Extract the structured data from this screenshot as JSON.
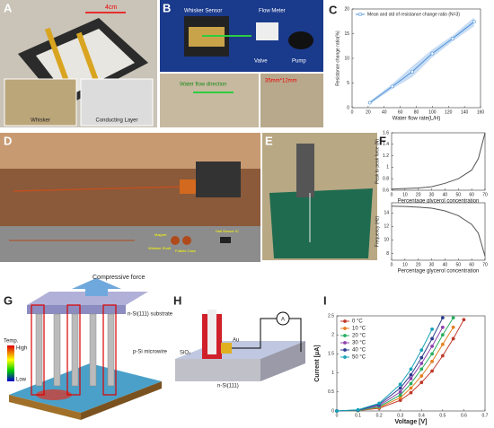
{
  "panels": [
    "A",
    "B",
    "C",
    "D",
    "E",
    "F",
    "G",
    "H",
    "I"
  ],
  "photo_labels": {
    "scale": "4cm",
    "whisker": "Whisker",
    "conducting_layer": "Conducting Layer",
    "whisker_sensor": "Whisker Sensor",
    "flow_meter": "Flow Meter",
    "valve": "Valve",
    "pump": "Pump",
    "flow_direction": "Water flow direction",
    "size": "35mm*12mm",
    "magnet": "Magnet",
    "whisker_shaft": "Whisker Shaft",
    "follicle_case": "Follicle Case",
    "hall_sensor": "Hall Sensor IC"
  },
  "diagram_labels": {
    "force": "Compressive force",
    "substrate": "n-Si(111) substrate",
    "microwire": "p-Si microwire",
    "temp": "Temp.",
    "high": "High",
    "low": "Low",
    "sio2": "SiO₂",
    "au": "Au",
    "nsi": "n-Si(111)",
    "ammeter": "A"
  },
  "chart_data": [
    {
      "type": "line",
      "x_label": "Water flow rate(L/H)",
      "y_label": "Resistance change ratio(%)",
      "x": [
        22,
        50,
        75,
        100,
        125,
        152
      ],
      "series": [
        {
          "name": "Mean and std of resistance change ratio (N=3)",
          "color": "#4a90d9",
          "values": [
            1,
            4.3,
            7.3,
            11,
            14,
            17.4
          ],
          "errors": [
            0.3,
            0.5,
            1.1,
            0.8,
            0.6,
            0.9
          ]
        }
      ],
      "xlim": [
        0,
        160
      ],
      "xticks": [
        0,
        20,
        40,
        60,
        80,
        100,
        120,
        140,
        160
      ],
      "ylim": [
        0,
        20
      ],
      "yticks": [
        0,
        5,
        10,
        15,
        20
      ],
      "markers": true,
      "legend": "upper left"
    },
    {
      "type": "line",
      "x_label": "Percentage glycerol concentration",
      "y_label": "Peak to peak force (N)",
      "x": [
        0,
        10,
        20,
        30,
        40,
        50,
        60,
        65,
        70
      ],
      "values": [
        0.62,
        0.63,
        0.64,
        0.66,
        0.72,
        0.8,
        0.95,
        1.15,
        1.6
      ],
      "color": "#555555",
      "xlim": [
        0,
        70
      ],
      "xticks": [
        0,
        10,
        20,
        30,
        40,
        50,
        60,
        70
      ],
      "ylim": [
        0.6,
        1.6
      ],
      "yticks": [
        0.6,
        0.8,
        1,
        1.2,
        1.4,
        1.6
      ]
    },
    {
      "type": "line",
      "x_label": "Percentage glycerol concentration",
      "y_label": "Frequency (Hz)",
      "x": [
        0,
        10,
        20,
        30,
        40,
        50,
        60,
        65,
        70
      ],
      "values": [
        15,
        14.95,
        14.85,
        14.7,
        14.3,
        13.6,
        12.3,
        11,
        7.6
      ],
      "color": "#555555",
      "xlim": [
        0,
        70
      ],
      "xticks": [
        0,
        10,
        20,
        30,
        40,
        50,
        60,
        70
      ],
      "ylim": [
        7,
        15.5
      ],
      "yticks": [
        8,
        10,
        12,
        14
      ]
    },
    {
      "type": "line",
      "x_label": "Voltage [V]",
      "y_label": "Current [μA]",
      "x": [
        0,
        0.1,
        0.2,
        0.3,
        0.35,
        0.4,
        0.45,
        0.5,
        0.55,
        0.6
      ],
      "series": [
        {
          "name": "0 °C",
          "color": "#c0392b",
          "values": [
            0,
            0.01,
            0.07,
            0.28,
            0.48,
            0.75,
            1.05,
            1.45,
            1.9,
            2.4
          ]
        },
        {
          "name": "10 °C",
          "color": "#e67e22",
          "values": [
            0,
            0.01,
            0.09,
            0.35,
            0.6,
            0.92,
            1.3,
            1.75,
            2.2,
            null
          ]
        },
        {
          "name": "20 °C",
          "color": "#27ae60",
          "values": [
            0,
            0.01,
            0.11,
            0.42,
            0.72,
            1.1,
            1.5,
            2.0,
            2.45,
            null
          ]
        },
        {
          "name": "30 °C",
          "color": "#8e44ad",
          "values": [
            0,
            0.02,
            0.14,
            0.5,
            0.85,
            1.25,
            1.7,
            2.2,
            null,
            null
          ]
        },
        {
          "name": "40 °C",
          "color": "#2c3e8f",
          "values": [
            0,
            0.02,
            0.17,
            0.6,
            0.95,
            1.4,
            1.9,
            2.45,
            null,
            null
          ]
        },
        {
          "name": "50 °C",
          "color": "#17a2b8",
          "values": [
            0,
            0.03,
            0.2,
            0.7,
            1.1,
            1.6,
            2.15,
            null,
            null,
            null
          ]
        }
      ],
      "xlim": [
        0,
        0.7
      ],
      "xticks": [
        0,
        0.1,
        0.2,
        0.3,
        0.4,
        0.5,
        0.6,
        0.7
      ],
      "ylim": [
        0,
        2.5
      ],
      "yticks": [
        0,
        0.5,
        1,
        1.5,
        2,
        2.5
      ],
      "markers": true,
      "legend": "upper left"
    }
  ]
}
